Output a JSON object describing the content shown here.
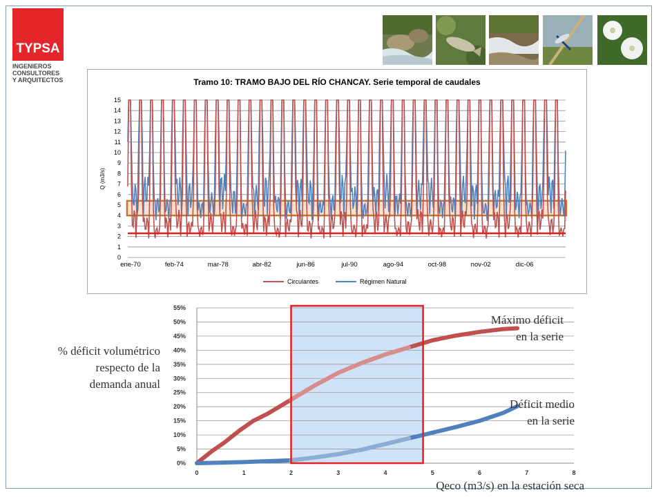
{
  "logo": {
    "brand": "TYPSA",
    "tagline": [
      "INGENIEROS",
      "CONSULTORES",
      "Y ARQUITECTOS"
    ]
  },
  "photos": [
    "river-rocks-photo",
    "fish-photo",
    "stream-photo",
    "dragonfly-photo",
    "white-flower-photo"
  ],
  "chart_data": [
    {
      "type": "line",
      "title": "Tramo 10: TRAMO BAJO DEL RÍO CHANCAY. Serie temporal de caudales",
      "ylabel": "Q (m3/s)",
      "xlabel": "",
      "ylim": [
        0,
        15
      ],
      "yticks": [
        0,
        1,
        2,
        3,
        4,
        5,
        6,
        7,
        8,
        9,
        10,
        11,
        12,
        13,
        14,
        15
      ],
      "categories": [
        "ene-70",
        "feb-74",
        "mar-78",
        "abr-82",
        "jun-86",
        "jul-90",
        "ago-94",
        "oct-98",
        "nov-02",
        "dic-06"
      ],
      "series": [
        {
          "name": "Circulantes",
          "color": "#c0504d",
          "dry_min": 1.8,
          "peak": 15
        },
        {
          "name": "Régimen Natural",
          "color": "#4f81bd",
          "dry_min": 3.5,
          "peak": 15
        }
      ],
      "threshold_line": 2.3,
      "threshold_color": "#e02020",
      "band": [
        4.0,
        5.4
      ],
      "band_color": "#c0772c",
      "grid": true,
      "legend_position": "bottom"
    },
    {
      "type": "line",
      "xlabel": "Qeco (m3/s) en la estación seca",
      "ylabel": "% déficit volumétrico respecto de la demanda anual",
      "xlim": [
        0,
        8
      ],
      "ylim": [
        0,
        55
      ],
      "xticks": [
        "0",
        "1",
        "2",
        "3",
        "4",
        "5",
        "6",
        "7",
        "8"
      ],
      "yticks": [
        "0%",
        "5%",
        "10%",
        "15%",
        "20%",
        "25%",
        "30%",
        "35%",
        "40%",
        "45%",
        "50%",
        "55%"
      ],
      "series": [
        {
          "name": "Máximo déficit en la serie",
          "color": "#c0504d",
          "x": [
            0,
            0.3,
            0.6,
            0.9,
            1.2,
            1.5,
            2.0,
            2.5,
            3.0,
            3.5,
            4.0,
            4.5,
            5.0,
            5.5,
            6.0,
            6.5,
            6.8
          ],
          "y": [
            0,
            4,
            7.5,
            11.5,
            15,
            17.5,
            22.5,
            27.5,
            32,
            35.5,
            38.5,
            41,
            43.5,
            45.2,
            46.5,
            47.5,
            47.8
          ]
        },
        {
          "name": "Déficit medio en la serie",
          "color": "#4f81bd",
          "x": [
            0,
            0.5,
            1.0,
            1.5,
            2.0,
            2.5,
            3.0,
            3.5,
            4.0,
            4.5,
            5.0,
            5.5,
            6.0,
            6.5,
            6.8
          ],
          "y": [
            0,
            0.2,
            0.4,
            0.7,
            1.0,
            2.0,
            3.2,
            4.8,
            6.8,
            8.8,
            10.8,
            12.8,
            15.0,
            17.8,
            20.2
          ]
        }
      ],
      "highlight_range": [
        2.0,
        4.8
      ],
      "highlight_color": "#cfe2f7",
      "highlight_border": "#e02020",
      "grid": true
    }
  ],
  "annotations": {
    "y_label_lines": [
      "% déficit volumétrico",
      "respecto de la",
      "demanda anual"
    ],
    "max_label_lines": [
      "Máximo déficit",
      "en la serie"
    ],
    "mean_label_lines": [
      "Déficit medio",
      "en la serie"
    ],
    "x_label": "Qeco (m3/s) en la estación seca"
  }
}
